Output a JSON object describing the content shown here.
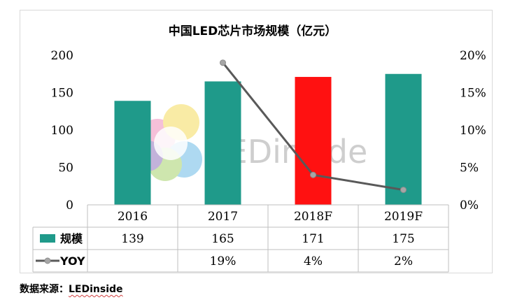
{
  "chart_data": {
    "type": "bar",
    "title": "中国LED芯片市场规模（亿元）",
    "categories": [
      "2016",
      "2017",
      "2018F",
      "2019F"
    ],
    "series": [
      {
        "name": "规模",
        "kind": "bar",
        "axis": "left",
        "values": [
          139,
          165,
          171,
          175
        ]
      },
      {
        "name": "YOY",
        "kind": "line",
        "axis": "right",
        "values": [
          null,
          19,
          4,
          2
        ]
      }
    ],
    "table": {
      "rows": [
        {
          "label": "规模",
          "cells": [
            "139",
            "165",
            "171",
            "175"
          ]
        },
        {
          "label": "YOY",
          "cells": [
            "",
            "19%",
            "4%",
            "2%"
          ]
        }
      ]
    },
    "y_left": {
      "ylim": [
        0,
        200
      ],
      "ticks": [
        "0",
        "50",
        "100",
        "150",
        "200"
      ]
    },
    "y_right": {
      "ylim": [
        0,
        20
      ],
      "ticks": [
        "0%",
        "5%",
        "10%",
        "15%",
        "20%"
      ]
    },
    "colors": {
      "bar": "#1f9a8a",
      "highlight": "#ff1111",
      "line": "#595959",
      "marker": "#a6a6a6"
    },
    "highlight_index": 2,
    "grid": false,
    "legend": "table-left"
  },
  "watermark": "LEDinside",
  "source": {
    "prefix": "数据来源：",
    "name": "LEDinside"
  }
}
